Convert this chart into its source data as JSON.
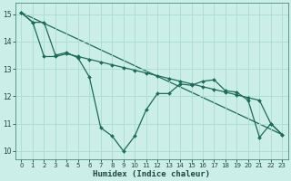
{
  "xlabel": "Humidex (Indice chaleur)",
  "background_color": "#cceee8",
  "grid_color": "#aaddcc",
  "line_color": "#1a6b5a",
  "xlim": [
    -0.5,
    23.5
  ],
  "ylim": [
    9.7,
    15.4
  ],
  "yticks": [
    10,
    11,
    12,
    13,
    14,
    15
  ],
  "xticks": [
    0,
    1,
    2,
    3,
    4,
    5,
    6,
    7,
    8,
    9,
    10,
    11,
    12,
    13,
    14,
    15,
    16,
    17,
    18,
    19,
    20,
    21,
    22,
    23
  ],
  "series1_x": [
    0,
    1,
    2,
    3,
    4,
    5,
    6,
    7,
    8,
    9,
    10,
    11,
    12,
    13,
    14,
    15,
    16,
    17,
    18,
    19,
    20,
    21,
    22,
    23
  ],
  "series1_y": [
    15.05,
    14.7,
    14.7,
    13.5,
    13.6,
    13.4,
    12.7,
    10.85,
    10.55,
    10.0,
    10.55,
    11.5,
    12.1,
    12.1,
    12.45,
    12.4,
    12.55,
    12.6,
    12.2,
    12.15,
    11.85,
    10.5,
    11.0,
    10.6
  ],
  "series2_x": [
    0,
    1,
    2,
    3,
    4,
    5,
    6,
    7,
    8,
    9,
    10,
    11,
    12,
    13,
    14,
    15,
    16,
    17,
    18,
    19,
    20,
    21,
    22,
    23
  ],
  "series2_y": [
    15.05,
    14.7,
    13.45,
    13.45,
    13.55,
    13.45,
    13.35,
    13.25,
    13.15,
    13.05,
    12.95,
    12.85,
    12.75,
    12.65,
    12.55,
    12.45,
    12.35,
    12.25,
    12.15,
    12.05,
    11.95,
    11.85,
    11.0,
    10.6
  ],
  "series3_x": [
    0,
    23
  ],
  "series3_y": [
    15.05,
    10.6
  ]
}
